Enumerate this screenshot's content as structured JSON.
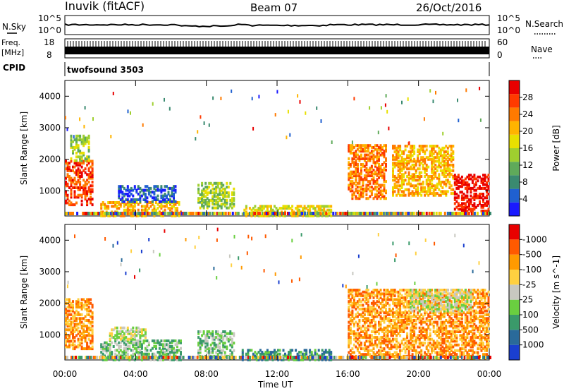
{
  "header": {
    "title": "Inuvik (fitACF)",
    "beam": "Beam 07",
    "date": "26/Oct/2016"
  },
  "noise_panel": {
    "left_label": "N.Sky",
    "right_label": "N.Search",
    "left_ticks": [
      "10^5",
      "10^0"
    ],
    "right_ticks": [
      "10^5",
      "10^0"
    ]
  },
  "freq_panel": {
    "left_label_1": "Freq.",
    "left_label_2": "[MHz]",
    "right_label": "Nave",
    "left_ticks": [
      "18",
      "8"
    ],
    "right_ticks": [
      "60",
      "0"
    ]
  },
  "cpid_panel": {
    "label": "CPID",
    "program": "twofsound 3503"
  },
  "time_axis": {
    "label": "Time UT",
    "ticks": [
      "00:00",
      "04:00",
      "08:00",
      "12:00",
      "16:00",
      "20:00",
      "00:00"
    ]
  },
  "chart_data": [
    {
      "type": "heatmap",
      "title": "",
      "xlabel": "Time UT",
      "ylabel": "Slant Range [km]",
      "x_ticks": [
        "00:00",
        "04:00",
        "08:00",
        "12:00",
        "16:00",
        "20:00",
        "00:00"
      ],
      "y_ticks": [
        1000,
        2000,
        3000,
        4000
      ],
      "ylim": [
        200,
        4500
      ],
      "colorbar": {
        "label": "Power [dB]",
        "ticks": [
          "4",
          "8",
          "12",
          "16",
          "20",
          "24",
          "28"
        ],
        "colors": [
          "#1a1aff",
          "#2060d0",
          "#3a8a70",
          "#5faa5a",
          "#9fcf2f",
          "#e8e000",
          "#ffb400",
          "#ff7a00",
          "#ff3a00",
          "#e80000"
        ]
      },
      "regions": [
        {
          "t0": 0.0,
          "t1": 1.6,
          "r0": 600,
          "r1": 2000,
          "level": 8
        },
        {
          "t0": 0.3,
          "t1": 1.4,
          "r0": 2000,
          "r1": 2800,
          "level": 4
        },
        {
          "t0": 2.0,
          "t1": 6.5,
          "r0": 250,
          "r1": 700,
          "level": 6
        },
        {
          "t0": 3.0,
          "t1": 6.2,
          "r0": 700,
          "r1": 1200,
          "level": 1
        },
        {
          "t0": 7.5,
          "t1": 9.5,
          "r0": 500,
          "r1": 1300,
          "level": 4
        },
        {
          "t0": 10.0,
          "t1": 15.0,
          "r0": 250,
          "r1": 600,
          "level": 5
        },
        {
          "t0": 16.0,
          "t1": 18.2,
          "r0": 800,
          "r1": 2500,
          "level": 7
        },
        {
          "t0": 18.5,
          "t1": 22.0,
          "r0": 900,
          "r1": 2500,
          "level": 6
        },
        {
          "t0": 22.0,
          "t1": 24.0,
          "r0": 400,
          "r1": 1600,
          "level": 9
        }
      ]
    },
    {
      "type": "heatmap",
      "title": "",
      "xlabel": "Time UT",
      "ylabel": "Slant Range [km]",
      "x_ticks": [
        "00:00",
        "04:00",
        "08:00",
        "12:00",
        "16:00",
        "20:00",
        "00:00"
      ],
      "y_ticks": [
        1000,
        2000,
        3000,
        4000
      ],
      "ylim": [
        200,
        4500
      ],
      "colorbar": {
        "label": "Velocity [m s^-1]",
        "ticks": [
          "1000",
          "500",
          "100",
          "25",
          "-25",
          "-100",
          "-500",
          "-1000"
        ],
        "colors": [
          "#1a3fcf",
          "#2a6a9a",
          "#3a9a6a",
          "#6acf40",
          "#c8c8c0",
          "#ffd040",
          "#ff9a00",
          "#ff5a00",
          "#e80000"
        ]
      },
      "regions": [
        {
          "t0": 0.0,
          "t1": 1.6,
          "r0": 600,
          "r1": 2200,
          "level": 6
        },
        {
          "t0": 2.0,
          "t1": 6.5,
          "r0": 250,
          "r1": 900,
          "level": 3
        },
        {
          "t0": 2.5,
          "t1": 4.5,
          "r0": 900,
          "r1": 1300,
          "level": 4
        },
        {
          "t0": 7.5,
          "t1": 9.5,
          "r0": 300,
          "r1": 1200,
          "level": 3
        },
        {
          "t0": 10.0,
          "t1": 15.0,
          "r0": 250,
          "r1": 600,
          "level": 2
        },
        {
          "t0": 16.0,
          "t1": 24.0,
          "r0": 300,
          "r1": 2500,
          "level": 6
        },
        {
          "t0": 19.5,
          "t1": 23.0,
          "r0": 1800,
          "r1": 2500,
          "level": 4
        }
      ]
    }
  ]
}
